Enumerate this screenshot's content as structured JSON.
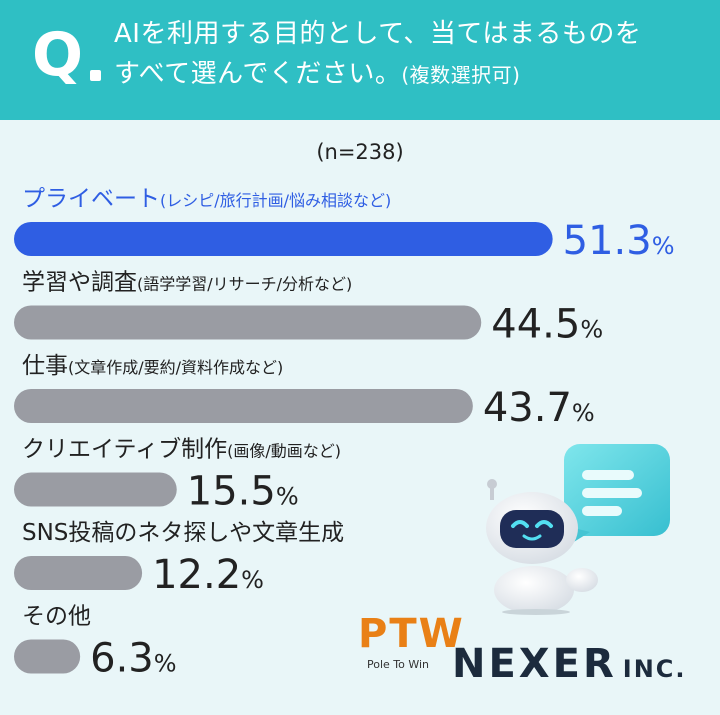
{
  "header": {
    "q_letter": "Q",
    "question_line1": "AIを利用する目的として、当てはまるものを",
    "question_line2": "すべて選んでください。",
    "question_note": "(複数選択可)"
  },
  "sample_size": "(n=238)",
  "chart_data": {
    "type": "bar",
    "orientation": "horizontal",
    "categories": [
      {
        "name": "プライベート",
        "detail": "(レシピ/旅行計画/悩み相談など)"
      },
      {
        "name": "学習や調査",
        "detail": "(語学学習/リサーチ/分析など)"
      },
      {
        "name": "仕事",
        "detail": "(文章作成/要約/資料作成など)"
      },
      {
        "name": "クリエイティブ制作",
        "detail": "(画像/動画など)"
      },
      {
        "name": "SNS投稿のネタ探しや文章生成",
        "detail": ""
      },
      {
        "name": "その他",
        "detail": ""
      }
    ],
    "values": [
      51.3,
      44.5,
      43.7,
      15.5,
      12.2,
      6.3
    ],
    "value_labels": [
      "51.3",
      "44.5",
      "43.7",
      "15.5",
      "12.2",
      "6.3"
    ],
    "unit": "%",
    "highlight_index": 0,
    "colors": {
      "highlight": "#2f5ee3",
      "default": "#9a9ca3"
    },
    "xlim": [
      0,
      100
    ]
  },
  "logos": {
    "ptw": "PTW",
    "ptw_tagline": "Pole To Win",
    "nexer": "NEXER",
    "nexer_suffix": "INC."
  },
  "colors": {
    "header_bg": "#2fbfc4",
    "page_bg": "#e9f6f8",
    "accent": "#2f5ee3"
  }
}
